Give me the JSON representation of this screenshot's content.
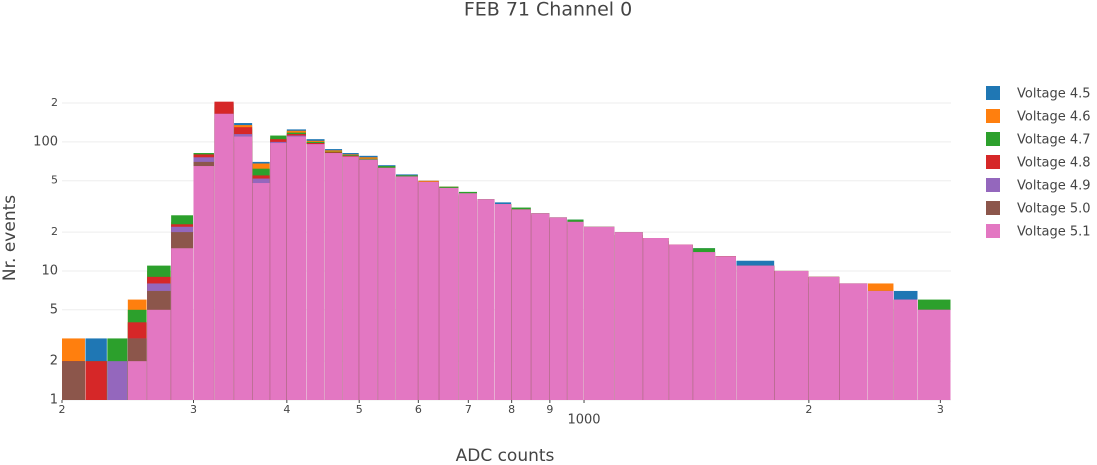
{
  "chart_data": {
    "type": "histogram",
    "title": "FEB 71 Channel 0",
    "x_label": "ADC counts",
    "y_label": "Nr. events",
    "xscale": "log",
    "yscale": "log",
    "ygrid": true,
    "legend": "right",
    "bins": [
      200,
      215,
      230,
      245,
      260,
      280,
      300,
      320,
      340,
      360,
      380,
      400,
      425,
      450,
      475,
      500,
      530,
      560,
      600,
      640,
      680,
      720,
      760,
      800,
      850,
      900,
      950,
      1000,
      1100,
      1200,
      1300,
      1400,
      1500,
      1600,
      1800,
      2000,
      2200,
      2400,
      2600,
      2800,
      3100
    ],
    "series": [
      {
        "name": "Voltage 4.5",
        "color": "#1f77b4",
        "values": [
          1,
          3,
          2,
          4,
          8,
          22,
          75,
          200,
          140,
          70,
          100,
          125,
          105,
          88,
          82,
          78,
          66,
          56,
          50,
          44,
          40,
          36,
          34,
          30,
          28,
          26,
          25,
          22,
          20,
          18,
          16,
          15,
          13,
          12,
          10,
          9,
          8,
          7,
          7,
          5
        ]
      },
      {
        "name": "Voltage 4.6",
        "color": "#ff7f0e",
        "values": [
          3,
          1,
          2,
          6,
          10,
          24,
          78,
          195,
          135,
          68,
          108,
          122,
          102,
          86,
          80,
          76,
          64,
          55,
          50,
          45,
          40,
          36,
          33,
          30,
          28,
          26,
          24,
          22,
          20,
          18,
          16,
          14,
          13,
          11,
          10,
          9,
          8,
          8,
          6,
          5
        ]
      },
      {
        "name": "Voltage 4.7",
        "color": "#2ca02c",
        "values": [
          1,
          2,
          3,
          5,
          11,
          27,
          82,
          185,
          125,
          62,
          112,
          118,
          100,
          84,
          79,
          74,
          65,
          55,
          49,
          45,
          41,
          36,
          33,
          31,
          28,
          26,
          25,
          22,
          20,
          17,
          16,
          15,
          13,
          11,
          10,
          9,
          8,
          7,
          6,
          6
        ]
      },
      {
        "name": "Voltage 4.8",
        "color": "#d62728",
        "values": [
          2,
          2,
          1,
          4,
          9,
          23,
          80,
          205,
          130,
          55,
          105,
          115,
          98,
          83,
          78,
          73,
          63,
          54,
          49,
          44,
          39,
          35,
          33,
          30,
          27,
          25,
          24,
          21,
          19,
          18,
          16,
          14,
          13,
          11,
          10,
          9,
          8,
          7,
          6,
          5
        ]
      },
      {
        "name": "Voltage 4.9",
        "color": "#9467bd",
        "values": [
          1,
          1,
          2,
          3,
          8,
          22,
          76,
          165,
          115,
          52,
          100,
          112,
          96,
          80,
          77,
          72,
          62,
          53,
          48,
          43,
          39,
          35,
          32,
          29,
          27,
          25,
          24,
          21,
          19,
          17,
          15,
          14,
          12,
          11,
          9,
          8,
          7,
          7,
          6,
          5
        ]
      },
      {
        "name": "Voltage 5.0",
        "color": "#8c564b",
        "values": [
          2,
          1,
          1,
          3,
          7,
          20,
          70,
          150,
          100,
          45,
          95,
          108,
          95,
          80,
          76,
          72,
          62,
          53,
          48,
          43,
          38,
          35,
          32,
          29,
          27,
          25,
          23,
          21,
          19,
          17,
          15,
          14,
          12,
          11,
          9,
          8,
          7,
          6,
          5,
          4
        ]
      },
      {
        "name": "Voltage 5.1",
        "color": "#e377c2",
        "values": [
          1,
          1,
          1,
          2,
          5,
          15,
          65,
          165,
          110,
          48,
          98,
          110,
          96,
          82,
          77,
          73,
          63,
          54,
          49,
          44,
          40,
          36,
          33,
          30,
          28,
          26,
          24,
          22,
          20,
          18,
          16,
          14,
          13,
          11,
          10,
          9,
          8,
          7,
          6,
          5
        ]
      }
    ],
    "xlim": [
      200,
      3100
    ],
    "ylim": [
      1,
      215
    ],
    "xticks": [
      {
        "value": 200,
        "label": "2"
      },
      {
        "value": 300,
        "label": "3"
      },
      {
        "value": 400,
        "label": "4"
      },
      {
        "value": 500,
        "label": "5"
      },
      {
        "value": 600,
        "label": "6"
      },
      {
        "value": 700,
        "label": "7"
      },
      {
        "value": 800,
        "label": "8"
      },
      {
        "value": 900,
        "label": "9"
      },
      1000,
      {
        "value": 2000,
        "label": "2"
      },
      {
        "value": 3000,
        "label": "3"
      }
    ],
    "yticks": [
      1,
      2,
      5,
      10,
      {
        "value": 20,
        "label": "2"
      },
      {
        "value": 50,
        "label": "5"
      },
      100,
      {
        "value": 200,
        "label": "2"
      }
    ]
  }
}
